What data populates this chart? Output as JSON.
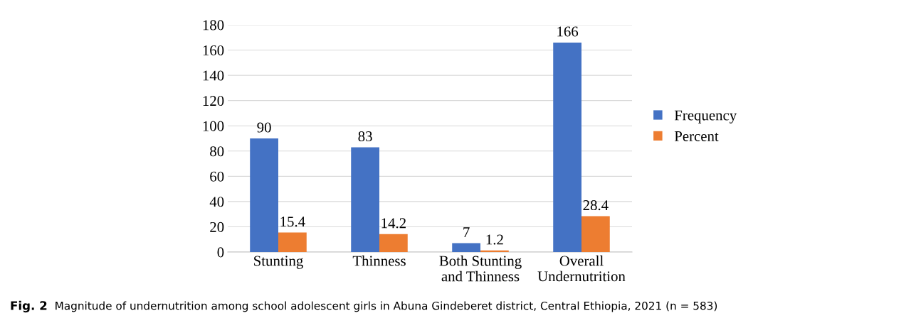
{
  "chart_data": {
    "type": "bar",
    "categories": [
      "Stunting",
      "Thinness",
      "Both Stunting\nand Thinness",
      "Overall\nUndernutrition"
    ],
    "series": [
      {
        "name": "Frequency",
        "color": "#4472c4",
        "values": [
          90,
          83,
          7,
          166
        ]
      },
      {
        "name": "Percent",
        "color": "#ed7d31",
        "values": [
          15.4,
          14.2,
          1.2,
          28.4
        ]
      }
    ],
    "ylim": [
      0,
      180
    ],
    "yticks": [
      0,
      20,
      40,
      60,
      80,
      100,
      120,
      140,
      160,
      180
    ],
    "grid": "y",
    "legend": "right",
    "data_labels": true,
    "annotations": [
      "Fig. 2",
      "Magnitude of undernutrition among school adolescent girls in Abuna Gindeberet district, Central Ethiopia, 2021 (n = 583)"
    ]
  }
}
